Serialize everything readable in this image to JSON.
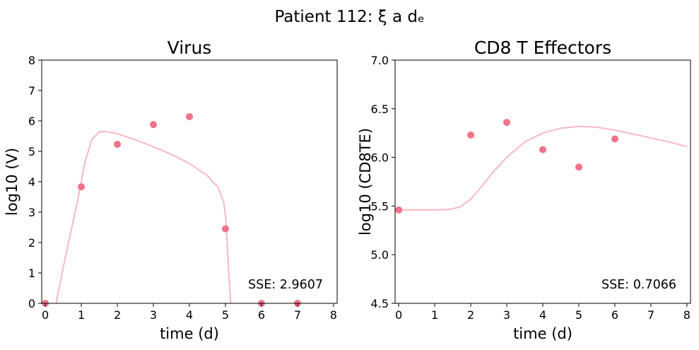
{
  "suptitle": "Patient 112: ξ a dₑ",
  "colors": {
    "point": "#f07387",
    "fit_line": "#f9b8c4",
    "axes": "#000000"
  },
  "chart_data": [
    {
      "type": "scatter",
      "title": "Virus",
      "xlabel": "time (d)",
      "ylabel": "log10 (V)",
      "xlim": [
        -0.1,
        8.1
      ],
      "ylim": [
        0,
        8
      ],
      "xticks": [
        0,
        1,
        2,
        3,
        4,
        5,
        6,
        7,
        8
      ],
      "yticks": [
        0,
        1,
        2,
        3,
        4,
        5,
        6,
        7,
        8
      ],
      "ytick_labels": [
        "0",
        "1",
        "2",
        "3",
        "4",
        "5",
        "6",
        "7",
        "8"
      ],
      "series": [
        {
          "kind": "points",
          "x": [
            0,
            1,
            2,
            3,
            4,
            5,
            6,
            7
          ],
          "y": [
            0,
            3.83,
            5.23,
            5.88,
            6.14,
            2.45,
            0,
            0
          ]
        },
        {
          "kind": "fit_line",
          "x": [
            0.3,
            0.5,
            0.7,
            0.9,
            1.1,
            1.3,
            1.5,
            1.7,
            2.0,
            2.5,
            3.0,
            3.5,
            4.0,
            4.5,
            4.8,
            4.95,
            5.0,
            5.05,
            5.1,
            5.15
          ],
          "y": [
            0,
            1.2,
            2.3,
            3.4,
            4.65,
            5.4,
            5.64,
            5.65,
            5.58,
            5.38,
            5.15,
            4.9,
            4.6,
            4.2,
            3.8,
            3.35,
            2.9,
            2.0,
            0.8,
            0
          ]
        }
      ],
      "annotation": "SSE: 2.9607"
    },
    {
      "type": "scatter",
      "title": "CD8 T Effectors",
      "xlabel": "time (d)",
      "ylabel": "log10 (CD8TE)",
      "xlim": [
        -0.1,
        8.1
      ],
      "ylim": [
        4.5,
        7.0
      ],
      "xticks": [
        0,
        1,
        2,
        3,
        4,
        5,
        6,
        7,
        8
      ],
      "yticks": [
        4.5,
        5.0,
        5.5,
        6.0,
        6.5,
        7.0
      ],
      "ytick_labels": [
        "4.5",
        "5.0",
        "5.5",
        "6.0",
        "6.5",
        "7.0"
      ],
      "series": [
        {
          "kind": "points",
          "x": [
            0,
            2,
            3,
            4,
            5,
            6
          ],
          "y": [
            5.46,
            6.23,
            6.36,
            6.08,
            5.9,
            6.19
          ]
        },
        {
          "kind": "fit_line",
          "x": [
            0,
            0.5,
            1.0,
            1.4,
            1.7,
            2.0,
            2.3,
            2.6,
            3.0,
            3.5,
            4.0,
            4.5,
            5.0,
            5.5,
            6.0,
            6.5,
            7.0,
            7.5,
            8.0
          ],
          "y": [
            5.46,
            5.46,
            5.46,
            5.465,
            5.49,
            5.57,
            5.7,
            5.84,
            6.0,
            6.16,
            6.25,
            6.3,
            6.32,
            6.31,
            6.28,
            6.24,
            6.2,
            6.16,
            6.11
          ]
        }
      ],
      "annotation": "SSE: 0.7066"
    }
  ]
}
